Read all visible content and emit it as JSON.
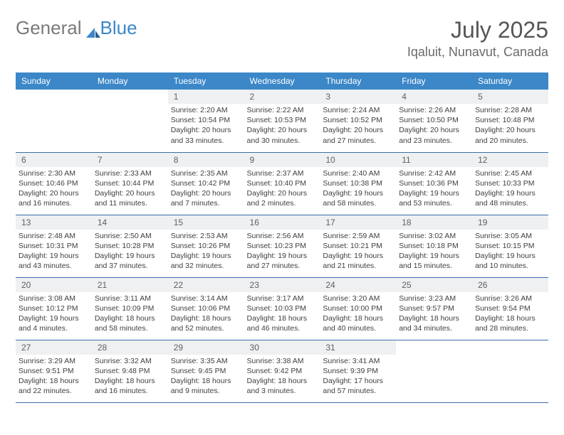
{
  "brand": {
    "part1": "General",
    "part2": "Blue"
  },
  "title": "July 2025",
  "location": "Iqaluit, Nunavut, Canada",
  "colors": {
    "header_bg": "#3b87c8",
    "header_text": "#ffffff",
    "daynum_bg": "#eef0f2",
    "week_border": "#3b6fa8",
    "body_text": "#404040",
    "sail_fill": "#3b87c8",
    "sail_dark": "#2c5f91"
  },
  "day_headers": [
    "Sunday",
    "Monday",
    "Tuesday",
    "Wednesday",
    "Thursday",
    "Friday",
    "Saturday"
  ],
  "weeks": [
    [
      null,
      null,
      {
        "n": "1",
        "sr": "Sunrise: 2:20 AM",
        "ss": "Sunset: 10:54 PM",
        "dl": "Daylight: 20 hours and 33 minutes."
      },
      {
        "n": "2",
        "sr": "Sunrise: 2:22 AM",
        "ss": "Sunset: 10:53 PM",
        "dl": "Daylight: 20 hours and 30 minutes."
      },
      {
        "n": "3",
        "sr": "Sunrise: 2:24 AM",
        "ss": "Sunset: 10:52 PM",
        "dl": "Daylight: 20 hours and 27 minutes."
      },
      {
        "n": "4",
        "sr": "Sunrise: 2:26 AM",
        "ss": "Sunset: 10:50 PM",
        "dl": "Daylight: 20 hours and 23 minutes."
      },
      {
        "n": "5",
        "sr": "Sunrise: 2:28 AM",
        "ss": "Sunset: 10:48 PM",
        "dl": "Daylight: 20 hours and 20 minutes."
      }
    ],
    [
      {
        "n": "6",
        "sr": "Sunrise: 2:30 AM",
        "ss": "Sunset: 10:46 PM",
        "dl": "Daylight: 20 hours and 16 minutes."
      },
      {
        "n": "7",
        "sr": "Sunrise: 2:33 AM",
        "ss": "Sunset: 10:44 PM",
        "dl": "Daylight: 20 hours and 11 minutes."
      },
      {
        "n": "8",
        "sr": "Sunrise: 2:35 AM",
        "ss": "Sunset: 10:42 PM",
        "dl": "Daylight: 20 hours and 7 minutes."
      },
      {
        "n": "9",
        "sr": "Sunrise: 2:37 AM",
        "ss": "Sunset: 10:40 PM",
        "dl": "Daylight: 20 hours and 2 minutes."
      },
      {
        "n": "10",
        "sr": "Sunrise: 2:40 AM",
        "ss": "Sunset: 10:38 PM",
        "dl": "Daylight: 19 hours and 58 minutes."
      },
      {
        "n": "11",
        "sr": "Sunrise: 2:42 AM",
        "ss": "Sunset: 10:36 PM",
        "dl": "Daylight: 19 hours and 53 minutes."
      },
      {
        "n": "12",
        "sr": "Sunrise: 2:45 AM",
        "ss": "Sunset: 10:33 PM",
        "dl": "Daylight: 19 hours and 48 minutes."
      }
    ],
    [
      {
        "n": "13",
        "sr": "Sunrise: 2:48 AM",
        "ss": "Sunset: 10:31 PM",
        "dl": "Daylight: 19 hours and 43 minutes."
      },
      {
        "n": "14",
        "sr": "Sunrise: 2:50 AM",
        "ss": "Sunset: 10:28 PM",
        "dl": "Daylight: 19 hours and 37 minutes."
      },
      {
        "n": "15",
        "sr": "Sunrise: 2:53 AM",
        "ss": "Sunset: 10:26 PM",
        "dl": "Daylight: 19 hours and 32 minutes."
      },
      {
        "n": "16",
        "sr": "Sunrise: 2:56 AM",
        "ss": "Sunset: 10:23 PM",
        "dl": "Daylight: 19 hours and 27 minutes."
      },
      {
        "n": "17",
        "sr": "Sunrise: 2:59 AM",
        "ss": "Sunset: 10:21 PM",
        "dl": "Daylight: 19 hours and 21 minutes."
      },
      {
        "n": "18",
        "sr": "Sunrise: 3:02 AM",
        "ss": "Sunset: 10:18 PM",
        "dl": "Daylight: 19 hours and 15 minutes."
      },
      {
        "n": "19",
        "sr": "Sunrise: 3:05 AM",
        "ss": "Sunset: 10:15 PM",
        "dl": "Daylight: 19 hours and 10 minutes."
      }
    ],
    [
      {
        "n": "20",
        "sr": "Sunrise: 3:08 AM",
        "ss": "Sunset: 10:12 PM",
        "dl": "Daylight: 19 hours and 4 minutes."
      },
      {
        "n": "21",
        "sr": "Sunrise: 3:11 AM",
        "ss": "Sunset: 10:09 PM",
        "dl": "Daylight: 18 hours and 58 minutes."
      },
      {
        "n": "22",
        "sr": "Sunrise: 3:14 AM",
        "ss": "Sunset: 10:06 PM",
        "dl": "Daylight: 18 hours and 52 minutes."
      },
      {
        "n": "23",
        "sr": "Sunrise: 3:17 AM",
        "ss": "Sunset: 10:03 PM",
        "dl": "Daylight: 18 hours and 46 minutes."
      },
      {
        "n": "24",
        "sr": "Sunrise: 3:20 AM",
        "ss": "Sunset: 10:00 PM",
        "dl": "Daylight: 18 hours and 40 minutes."
      },
      {
        "n": "25",
        "sr": "Sunrise: 3:23 AM",
        "ss": "Sunset: 9:57 PM",
        "dl": "Daylight: 18 hours and 34 minutes."
      },
      {
        "n": "26",
        "sr": "Sunrise: 3:26 AM",
        "ss": "Sunset: 9:54 PM",
        "dl": "Daylight: 18 hours and 28 minutes."
      }
    ],
    [
      {
        "n": "27",
        "sr": "Sunrise: 3:29 AM",
        "ss": "Sunset: 9:51 PM",
        "dl": "Daylight: 18 hours and 22 minutes."
      },
      {
        "n": "28",
        "sr": "Sunrise: 3:32 AM",
        "ss": "Sunset: 9:48 PM",
        "dl": "Daylight: 18 hours and 16 minutes."
      },
      {
        "n": "29",
        "sr": "Sunrise: 3:35 AM",
        "ss": "Sunset: 9:45 PM",
        "dl": "Daylight: 18 hours and 9 minutes."
      },
      {
        "n": "30",
        "sr": "Sunrise: 3:38 AM",
        "ss": "Sunset: 9:42 PM",
        "dl": "Daylight: 18 hours and 3 minutes."
      },
      {
        "n": "31",
        "sr": "Sunrise: 3:41 AM",
        "ss": "Sunset: 9:39 PM",
        "dl": "Daylight: 17 hours and 57 minutes."
      },
      null,
      null
    ]
  ]
}
